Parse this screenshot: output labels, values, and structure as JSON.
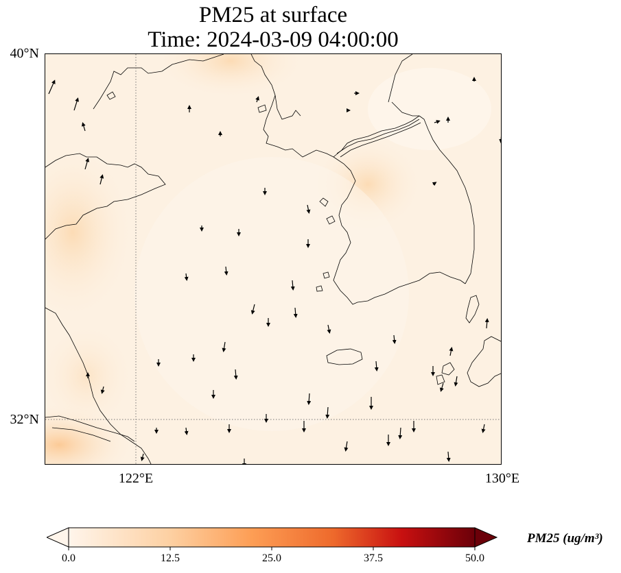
{
  "title": {
    "line1": "PM25 at surface",
    "line2": "Time: 2024-03-09 04:00:00"
  },
  "map": {
    "lat_labels": [
      "40°N",
      "32°N"
    ],
    "lon_labels": [
      "122°E",
      "130°E"
    ],
    "extent": {
      "lon": [
        120,
        130
      ],
      "lat": [
        31,
        40
      ]
    },
    "gridlines": {
      "lon": [
        122
      ],
      "lat": [
        32
      ],
      "style": "dotted"
    },
    "background_color": "#fdf1e2"
  },
  "colorbar": {
    "label": "PM25 (ug/m³)",
    "ticks": [
      "0.0",
      "12.5",
      "25.0",
      "37.5",
      "50.0"
    ],
    "range": [
      0,
      50
    ],
    "extend": "both",
    "colormap": [
      "#fff5eb",
      "#fdd49e",
      "#fdae6b",
      "#f16913",
      "#d94801",
      "#a50f15",
      "#67000d"
    ]
  }
}
